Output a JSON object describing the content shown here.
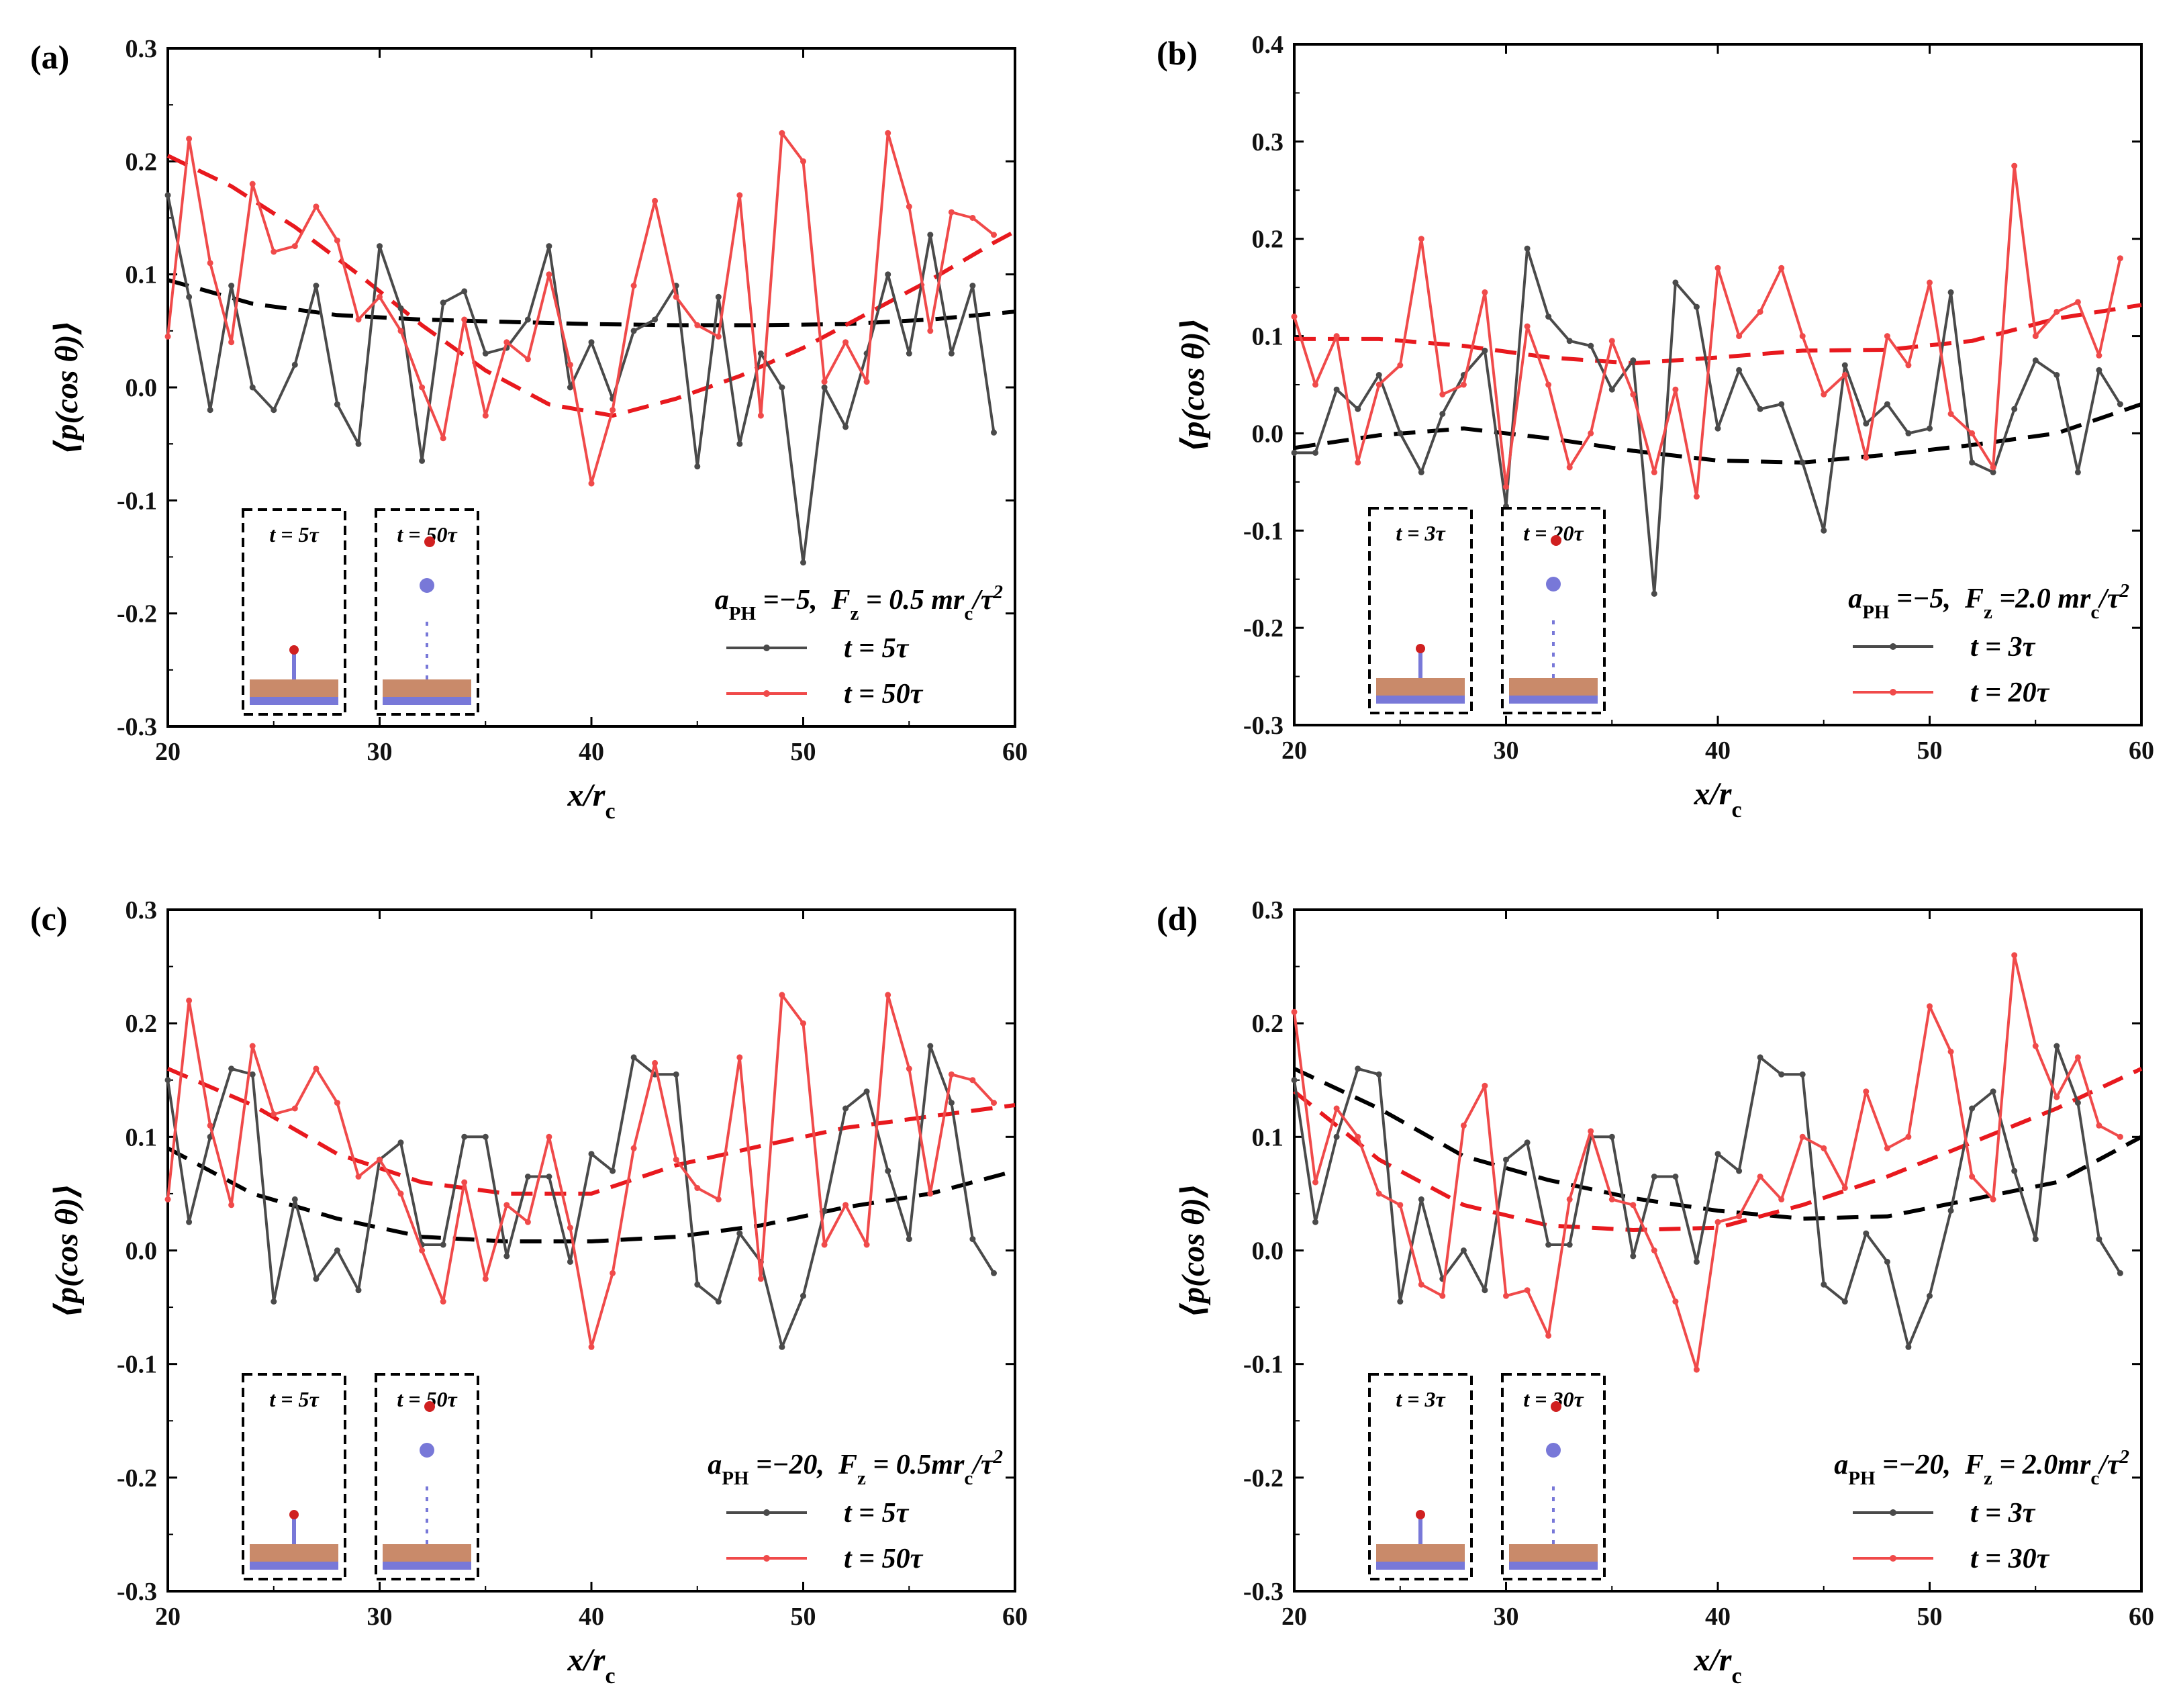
{
  "colors": {
    "series_black": "#4a4a4a",
    "series_red": "#f04a4a",
    "fit_black": "#000000",
    "fit_red": "#e8191e",
    "inset_base": "#c98a6a",
    "inset_film": "#7878d8",
    "inset_drop": "#d02020"
  },
  "chart_data": [
    {
      "type": "line",
      "panel_label": "(a)",
      "xlabel": "x/r_c",
      "ylabel": "⟨p(cos θ)⟩",
      "xlim": [
        20,
        60
      ],
      "ylim": [
        -0.3,
        0.3
      ],
      "xticks": [
        20,
        30,
        40,
        50,
        60
      ],
      "yticks": [
        0.3,
        0.2,
        0.1,
        0.0,
        -0.1,
        -0.2,
        -0.3
      ],
      "ytick_labels": [
        "0.3",
        "0.2",
        "0.1",
        "0.0",
        "-0.1",
        "-0.2",
        "-0.3"
      ],
      "annotation": "a_PH =−5,  F_z = 0.5 mr_c/τ²",
      "legend": [
        "t = 5τ",
        "t = 50τ"
      ],
      "insets": [
        "t = 5τ",
        "t = 50τ"
      ],
      "x": [
        20,
        21,
        22,
        23,
        24,
        25,
        26,
        27,
        28,
        29,
        30,
        31,
        32,
        33,
        34,
        35,
        36,
        37,
        38,
        39,
        40,
        41,
        42,
        43,
        44,
        45,
        46,
        47,
        48,
        49,
        50,
        51,
        52,
        53,
        54,
        55,
        56,
        57,
        58,
        59
      ],
      "series": [
        {
          "name": "t = 5τ",
          "color": "black",
          "values": [
            0.17,
            0.08,
            -0.02,
            0.09,
            0.0,
            -0.02,
            0.02,
            0.09,
            -0.015,
            -0.05,
            0.125,
            0.07,
            -0.065,
            0.075,
            0.085,
            0.03,
            0.035,
            0.06,
            0.125,
            0.0,
            0.04,
            -0.01,
            0.05,
            0.06,
            0.09,
            -0.07,
            0.08,
            -0.05,
            0.03,
            0.0,
            -0.155,
            0.0,
            -0.035,
            0.03,
            0.1,
            0.03,
            0.135,
            0.03,
            0.09,
            -0.04
          ]
        },
        {
          "name": "t = 50τ",
          "color": "red",
          "values": [
            0.045,
            0.22,
            0.11,
            0.04,
            0.18,
            0.12,
            0.125,
            0.16,
            0.13,
            0.06,
            0.08,
            0.05,
            0.0,
            -0.045,
            0.06,
            -0.025,
            0.04,
            0.025,
            0.1,
            0.02,
            -0.085,
            -0.02,
            0.09,
            0.165,
            0.08,
            0.055,
            0.045,
            0.17,
            -0.025,
            0.225,
            0.2,
            0.005,
            0.04,
            0.005,
            0.225,
            0.16,
            0.05,
            0.155,
            0.15,
            0.135
          ]
        }
      ],
      "fits": [
        {
          "name": "fit t = 5τ",
          "color": "black",
          "x": [
            20,
            24,
            28,
            32,
            36,
            40,
            44,
            48,
            52,
            56,
            60
          ],
          "values": [
            0.095,
            0.074,
            0.064,
            0.06,
            0.058,
            0.056,
            0.055,
            0.055,
            0.056,
            0.06,
            0.067
          ]
        },
        {
          "name": "fit t = 50τ",
          "color": "red",
          "x": [
            20,
            23,
            26,
            29,
            32,
            35,
            38,
            41,
            44,
            47,
            50,
            53,
            56,
            59,
            60
          ],
          "values": [
            0.205,
            0.178,
            0.142,
            0.1,
            0.055,
            0.015,
            -0.015,
            -0.025,
            -0.01,
            0.01,
            0.035,
            0.065,
            0.095,
            0.128,
            0.138
          ]
        }
      ]
    },
    {
      "type": "line",
      "panel_label": "(b)",
      "xlabel": "x/r_c",
      "ylabel": "⟨p(cos θ)⟩",
      "xlim": [
        20,
        60
      ],
      "ylim": [
        -0.3,
        0.4
      ],
      "xticks": [
        20,
        30,
        40,
        50,
        60
      ],
      "yticks": [
        0.4,
        0.3,
        0.2,
        0.1,
        0.0,
        -0.1,
        -0.2,
        -0.3
      ],
      "ytick_labels": [
        "0.4",
        "0.3",
        "0.2",
        "0.1",
        "0.0",
        "-0.1",
        "-0.2",
        "-0.3"
      ],
      "annotation": "a_PH =−5,  F_z =2.0 mr_c/τ²",
      "legend": [
        "t = 3τ",
        "t = 20τ"
      ],
      "insets": [
        "t = 3τ",
        "t = 20τ"
      ],
      "x": [
        20,
        21,
        22,
        23,
        24,
        25,
        26,
        27,
        28,
        29,
        30,
        31,
        32,
        33,
        34,
        35,
        36,
        37,
        38,
        39,
        40,
        41,
        42,
        43,
        44,
        45,
        46,
        47,
        48,
        49,
        50,
        51,
        52,
        53,
        54,
        55,
        56,
        57,
        58,
        59
      ],
      "series": [
        {
          "name": "t = 3τ",
          "color": "black",
          "values": [
            -0.02,
            -0.02,
            0.045,
            0.025,
            0.06,
            0.0,
            -0.04,
            0.02,
            0.06,
            0.085,
            -0.075,
            0.19,
            0.12,
            0.095,
            0.09,
            0.045,
            0.075,
            -0.165,
            0.155,
            0.13,
            0.005,
            0.065,
            0.025,
            0.03,
            -0.03,
            -0.1,
            0.07,
            0.01,
            0.03,
            0.0,
            0.005,
            0.145,
            -0.03,
            -0.04,
            0.025,
            0.075,
            0.06,
            -0.04,
            0.065,
            0.03
          ]
        },
        {
          "name": "t = 20τ",
          "color": "red",
          "values": [
            0.12,
            0.05,
            0.1,
            -0.03,
            0.05,
            0.07,
            0.2,
            0.04,
            0.05,
            0.145,
            -0.055,
            0.11,
            0.05,
            -0.035,
            0.0,
            0.095,
            0.04,
            -0.04,
            0.045,
            -0.065,
            0.17,
            0.1,
            0.125,
            0.17,
            0.1,
            0.04,
            0.06,
            -0.025,
            0.1,
            0.07,
            0.155,
            0.02,
            0.0,
            -0.035,
            0.275,
            0.1,
            0.125,
            0.135,
            0.08,
            0.18
          ]
        }
      ],
      "fits": [
        {
          "name": "fit t = 3τ",
          "color": "black",
          "x": [
            20,
            24,
            28,
            32,
            36,
            40,
            44,
            48,
            52,
            56,
            60
          ],
          "values": [
            -0.015,
            -0.002,
            0.005,
            -0.005,
            -0.018,
            -0.028,
            -0.03,
            -0.022,
            -0.012,
            0.0,
            0.03
          ]
        },
        {
          "name": "fit t = 20τ",
          "color": "red",
          "x": [
            20,
            24,
            28,
            32,
            36,
            40,
            44,
            48,
            52,
            56,
            60
          ],
          "values": [
            0.097,
            0.097,
            0.09,
            0.078,
            0.072,
            0.078,
            0.085,
            0.086,
            0.095,
            0.118,
            0.132
          ]
        }
      ]
    },
    {
      "type": "line",
      "panel_label": "(c)",
      "xlabel": "x/r_c",
      "ylabel": "⟨p(cos θ)⟩",
      "xlim": [
        20,
        60
      ],
      "ylim": [
        -0.3,
        0.3
      ],
      "xticks": [
        20,
        30,
        40,
        50,
        60
      ],
      "yticks": [
        0.3,
        0.2,
        0.1,
        0.0,
        -0.1,
        -0.2,
        -0.3
      ],
      "ytick_labels": [
        "0.3",
        "0.2",
        "0.1",
        "0.0",
        "-0.1",
        "-0.2",
        "-0.3"
      ],
      "annotation": "a_PH =−20,  F_z = 0.5mr_c/τ²",
      "legend": [
        "t = 5τ",
        "t = 50τ"
      ],
      "insets": [
        "t = 5τ",
        "t = 50τ"
      ],
      "x": [
        20,
        21,
        22,
        23,
        24,
        25,
        26,
        27,
        28,
        29,
        30,
        31,
        32,
        33,
        34,
        35,
        36,
        37,
        38,
        39,
        40,
        41,
        42,
        43,
        44,
        45,
        46,
        47,
        48,
        49,
        50,
        51,
        52,
        53,
        54,
        55,
        56,
        57,
        58,
        59
      ],
      "series": [
        {
          "name": "t = 5τ",
          "color": "black",
          "values": [
            0.15,
            0.025,
            0.1,
            0.16,
            0.155,
            -0.045,
            0.045,
            -0.025,
            0.0,
            -0.035,
            0.08,
            0.095,
            0.005,
            0.005,
            0.1,
            0.1,
            -0.005,
            0.065,
            0.065,
            -0.01,
            0.085,
            0.07,
            0.17,
            0.155,
            0.155,
            -0.03,
            -0.045,
            0.015,
            -0.01,
            -0.085,
            -0.04,
            0.035,
            0.125,
            0.14,
            0.07,
            0.01,
            0.18,
            0.13,
            0.01,
            -0.02
          ]
        },
        {
          "name": "t = 50τ",
          "color": "red",
          "values": [
            0.045,
            0.22,
            0.11,
            0.04,
            0.18,
            0.12,
            0.125,
            0.16,
            0.13,
            0.065,
            0.08,
            0.05,
            0.0,
            -0.045,
            0.06,
            -0.025,
            0.04,
            0.025,
            0.1,
            0.02,
            -0.085,
            -0.02,
            0.09,
            0.165,
            0.08,
            0.055,
            0.045,
            0.17,
            -0.025,
            0.225,
            0.2,
            0.005,
            0.04,
            0.005,
            0.225,
            0.16,
            0.05,
            0.155,
            0.15,
            0.13
          ]
        }
      ],
      "fits": [
        {
          "name": "fit t = 5τ",
          "color": "black",
          "x": [
            20,
            24,
            28,
            32,
            36,
            40,
            44,
            48,
            52,
            56,
            60
          ],
          "values": [
            0.09,
            0.05,
            0.028,
            0.012,
            0.008,
            0.008,
            0.012,
            0.022,
            0.038,
            0.05,
            0.07
          ]
        },
        {
          "name": "fit t = 50τ",
          "color": "red",
          "x": [
            20,
            24,
            28,
            32,
            36,
            40,
            44,
            48,
            52,
            56,
            60
          ],
          "values": [
            0.16,
            0.128,
            0.085,
            0.06,
            0.05,
            0.05,
            0.075,
            0.092,
            0.108,
            0.118,
            0.128
          ]
        }
      ]
    },
    {
      "type": "line",
      "panel_label": "(d)",
      "xlabel": "x/r_c",
      "ylabel": "⟨p(cos θ)⟩",
      "xlim": [
        20,
        60
      ],
      "ylim": [
        -0.3,
        0.3
      ],
      "xticks": [
        20,
        30,
        40,
        50,
        60
      ],
      "yticks": [
        0.3,
        0.2,
        0.1,
        0.0,
        -0.1,
        -0.2,
        -0.3
      ],
      "ytick_labels": [
        "0.3",
        "0.2",
        "0.1",
        "0.0",
        "-0.1",
        "-0.2",
        "-0.3"
      ],
      "annotation": "a_PH =−20,  F_z = 2.0mr_c/τ²",
      "legend": [
        "t = 3τ",
        "t = 30τ"
      ],
      "insets": [
        "t = 3τ",
        "t = 30τ"
      ],
      "x": [
        20,
        21,
        22,
        23,
        24,
        25,
        26,
        27,
        28,
        29,
        30,
        31,
        32,
        33,
        34,
        35,
        36,
        37,
        38,
        39,
        40,
        41,
        42,
        43,
        44,
        45,
        46,
        47,
        48,
        49,
        50,
        51,
        52,
        53,
        54,
        55,
        56,
        57,
        58,
        59
      ],
      "series": [
        {
          "name": "t = 3τ",
          "color": "black",
          "values": [
            0.15,
            0.025,
            0.1,
            0.16,
            0.155,
            -0.045,
            0.045,
            -0.025,
            0.0,
            -0.035,
            0.08,
            0.095,
            0.005,
            0.005,
            0.1,
            0.1,
            -0.005,
            0.065,
            0.065,
            -0.01,
            0.085,
            0.07,
            0.17,
            0.155,
            0.155,
            -0.03,
            -0.045,
            0.015,
            -0.01,
            -0.085,
            -0.04,
            0.035,
            0.125,
            0.14,
            0.07,
            0.01,
            0.18,
            0.13,
            0.01,
            -0.02
          ]
        },
        {
          "name": "t = 30τ",
          "color": "red",
          "values": [
            0.21,
            0.06,
            0.125,
            0.1,
            0.05,
            0.04,
            -0.03,
            -0.04,
            0.11,
            0.145,
            -0.04,
            -0.035,
            -0.075,
            0.045,
            0.105,
            0.045,
            0.04,
            0.0,
            -0.045,
            -0.105,
            0.025,
            0.03,
            0.065,
            0.045,
            0.1,
            0.09,
            0.055,
            0.14,
            0.09,
            0.1,
            0.215,
            0.175,
            0.065,
            0.045,
            0.26,
            0.18,
            0.135,
            0.17,
            0.11,
            0.1
          ]
        }
      ],
      "fits": [
        {
          "name": "fit t = 3τ",
          "color": "black",
          "x": [
            20,
            24,
            28,
            32,
            36,
            40,
            44,
            48,
            52,
            56,
            60
          ],
          "values": [
            0.16,
            0.125,
            0.083,
            0.062,
            0.046,
            0.035,
            0.028,
            0.03,
            0.045,
            0.06,
            0.1
          ]
        },
        {
          "name": "fit t = 30τ",
          "color": "red",
          "x": [
            20,
            24,
            28,
            32,
            36,
            40,
            44,
            48,
            52,
            56,
            60
          ],
          "values": [
            0.14,
            0.08,
            0.04,
            0.022,
            0.018,
            0.02,
            0.04,
            0.065,
            0.095,
            0.125,
            0.16
          ]
        }
      ]
    }
  ]
}
